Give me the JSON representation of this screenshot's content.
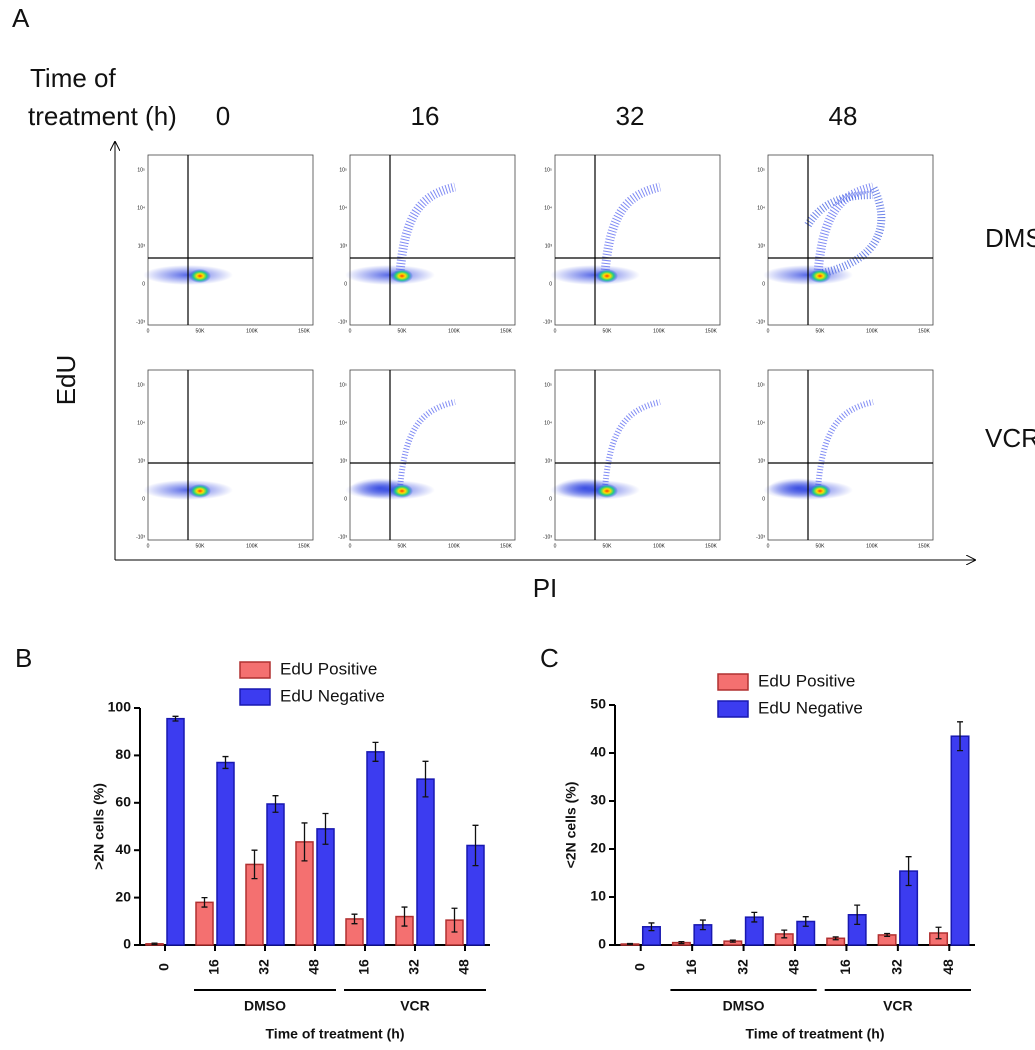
{
  "panel_a": {
    "panel_label": "A",
    "row_header": [
      "Time of",
      "treatment (h)"
    ],
    "times": [
      "0",
      "16",
      "32",
      "48"
    ],
    "conditions": [
      "DMSO",
      "VCR"
    ],
    "y_axis_label": "EdU",
    "x_axis_label": "PI",
    "x_tick_labels": [
      "0",
      "50K",
      "100K",
      "150K"
    ],
    "y_tick_labels": [
      "10⁵",
      "10⁴",
      "10³",
      "0",
      "-10³"
    ]
  },
  "chart_data": [
    {
      "type": "bar",
      "panel_label": "B",
      "y_label": ">2N cells (%)",
      "x_label": "Time of treatment (h)",
      "categories": [
        "0",
        "16",
        "32",
        "48",
        "16",
        "32",
        "48"
      ],
      "groups": [
        {
          "label": "DMSO",
          "span": [
            1,
            3
          ]
        },
        {
          "label": "VCR",
          "span": [
            4,
            6
          ]
        }
      ],
      "series": [
        {
          "name": "EdU Positive",
          "color": "#f47070",
          "edge": "#b03030",
          "values": [
            0.5,
            18,
            34,
            43.5,
            11,
            12,
            10.5
          ],
          "errors": [
            0.3,
            2,
            6,
            8,
            2,
            4,
            5
          ]
        },
        {
          "name": "EdU Negative",
          "color": "#3c3cf0",
          "edge": "#1818b0",
          "values": [
            95.5,
            77,
            59.5,
            49,
            81.5,
            70,
            42
          ],
          "errors": [
            1,
            2.5,
            3.5,
            6.5,
            4,
            7.5,
            8.5
          ]
        }
      ],
      "ylim": [
        0,
        100
      ],
      "yticks": [
        0,
        20,
        40,
        60,
        80,
        100
      ]
    },
    {
      "type": "bar",
      "panel_label": "C",
      "y_label": "<2N cells (%)",
      "x_label": "Time of treatment (h)",
      "categories": [
        "0",
        "16",
        "32",
        "48",
        "16",
        "32",
        "48"
      ],
      "groups": [
        {
          "label": "DMSO",
          "span": [
            1,
            3
          ]
        },
        {
          "label": "VCR",
          "span": [
            4,
            6
          ]
        }
      ],
      "series": [
        {
          "name": "EdU Positive",
          "color": "#f47070",
          "edge": "#b03030",
          "values": [
            0.2,
            0.5,
            0.8,
            2.3,
            1.4,
            2.1,
            2.5
          ],
          "errors": [
            0.1,
            0.2,
            0.2,
            0.8,
            0.3,
            0.3,
            1.2
          ]
        },
        {
          "name": "EdU Negative",
          "color": "#3c3cf0",
          "edge": "#1818b0",
          "values": [
            3.8,
            4.2,
            5.8,
            4.9,
            6.3,
            15.4,
            43.5
          ],
          "errors": [
            0.8,
            1,
            1,
            1,
            2,
            3,
            3
          ]
        }
      ],
      "ylim": [
        0,
        50
      ],
      "yticks": [
        0,
        10,
        20,
        30,
        40,
        50
      ]
    }
  ]
}
